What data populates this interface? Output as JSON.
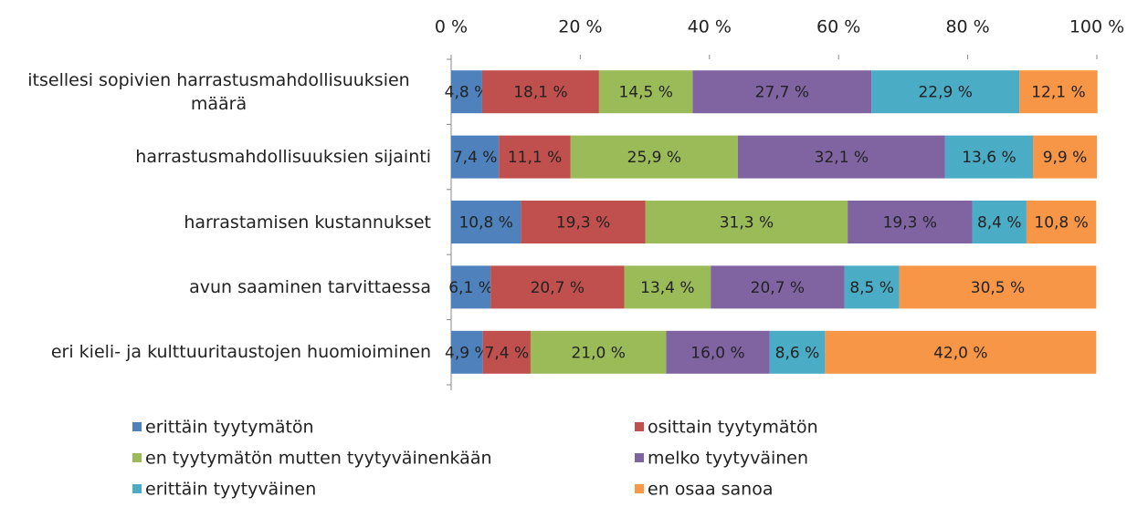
{
  "chart_data": {
    "type": "stacked-bar-horizontal",
    "categories": [
      "itsellesi sopivien harrastusmahdollisuuksien määrä",
      "harrastusmahdollisuuksien sijainti",
      "harrastamisen kustannukset",
      "avun saaminen tarvittaessa",
      "eri kieli- ja kulttuuritaustojen huomioiminen"
    ],
    "series": [
      {
        "name": "erittäin tyytymätön",
        "color": "#4f81bd",
        "values": [
          4.8,
          7.4,
          10.8,
          6.1,
          4.9
        ],
        "value_labels": [
          "4,8 %",
          "7,4 %",
          "10,8 %",
          "6,1 %",
          "4,9 %"
        ]
      },
      {
        "name": "osittain tyytymätön",
        "color": "#c0504d",
        "values": [
          18.1,
          11.1,
          19.3,
          20.7,
          7.4
        ],
        "value_labels": [
          "18,1 %",
          "11,1 %",
          "19,3 %",
          "20,7 %",
          "7,4 %"
        ]
      },
      {
        "name": "en tyytymätön mutten tyytyväinenkään",
        "color": "#9bbb59",
        "values": [
          14.5,
          25.9,
          31.3,
          13.4,
          21.0
        ],
        "value_labels": [
          "14,5 %",
          "25,9 %",
          "31,3 %",
          "13,4 %",
          "21,0 %"
        ]
      },
      {
        "name": "melko tyytyväinen",
        "color": "#8064a2",
        "values": [
          27.7,
          32.1,
          19.3,
          20.7,
          16.0
        ],
        "value_labels": [
          "27,7 %",
          "32,1 %",
          "19,3 %",
          "20,7 %",
          "16,0 %"
        ]
      },
      {
        "name": "erittäin tyytyväinen",
        "color": "#4bacc6",
        "values": [
          22.9,
          13.6,
          8.4,
          8.5,
          8.6
        ],
        "value_labels": [
          "22,9 %",
          "13,6 %",
          "8,4 %",
          "8,5 %",
          "8,6 %"
        ]
      },
      {
        "name": "en osaa sanoa",
        "color": "#f79646",
        "values": [
          12.1,
          9.9,
          10.8,
          30.5,
          42.0
        ],
        "value_labels": [
          "12,1 %",
          "9,9 %",
          "10,8 %",
          "30,5 %",
          "42,0 %"
        ]
      }
    ],
    "xlim": [
      0,
      100
    ],
    "xticks": [
      {
        "value": 0,
        "label": "0 %"
      },
      {
        "value": 20,
        "label": "20 %"
      },
      {
        "value": 40,
        "label": "40 %"
      },
      {
        "value": 60,
        "label": "60 %"
      },
      {
        "value": 80,
        "label": "80 %"
      },
      {
        "value": 100,
        "label": "100 %"
      }
    ],
    "legend": "bottom",
    "grid": false
  }
}
